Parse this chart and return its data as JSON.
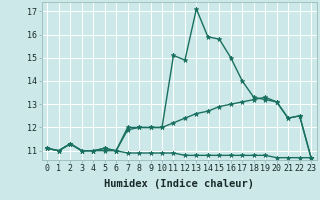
{
  "title": "",
  "xlabel": "Humidex (Indice chaleur)",
  "bg_color": "#cce8e8",
  "grid_color": "#ffffff",
  "line_color": "#1a7060",
  "x_values": [
    0,
    1,
    2,
    3,
    4,
    5,
    6,
    7,
    8,
    9,
    10,
    11,
    12,
    13,
    14,
    15,
    16,
    17,
    18,
    19,
    20,
    21,
    22,
    23
  ],
  "series1": [
    11.1,
    11.0,
    11.3,
    11.0,
    11.0,
    11.1,
    11.0,
    11.9,
    12.0,
    12.0,
    12.0,
    15.1,
    14.9,
    17.1,
    15.9,
    15.8,
    15.0,
    14.0,
    13.3,
    13.2,
    13.1,
    12.4,
    12.5,
    10.7
  ],
  "series2": [
    11.1,
    11.0,
    11.3,
    11.0,
    11.0,
    11.1,
    11.0,
    12.0,
    12.0,
    12.0,
    12.0,
    12.2,
    12.4,
    12.6,
    12.7,
    12.9,
    13.0,
    13.1,
    13.2,
    13.3,
    13.1,
    12.4,
    12.5,
    10.7
  ],
  "series3": [
    11.1,
    11.0,
    11.3,
    11.0,
    11.0,
    11.0,
    11.0,
    10.9,
    10.9,
    10.9,
    10.9,
    10.9,
    10.8,
    10.8,
    10.8,
    10.8,
    10.8,
    10.8,
    10.8,
    10.8,
    10.7,
    10.7,
    10.7,
    10.7
  ],
  "ylim": [
    10.6,
    17.4
  ],
  "xlim": [
    -0.5,
    23.5
  ],
  "yticks": [
    11,
    12,
    13,
    14,
    15,
    16,
    17
  ],
  "xlabel_fontsize": 7.5,
  "tick_fontsize": 6,
  "linewidth": 1.0,
  "markersize": 3.5
}
